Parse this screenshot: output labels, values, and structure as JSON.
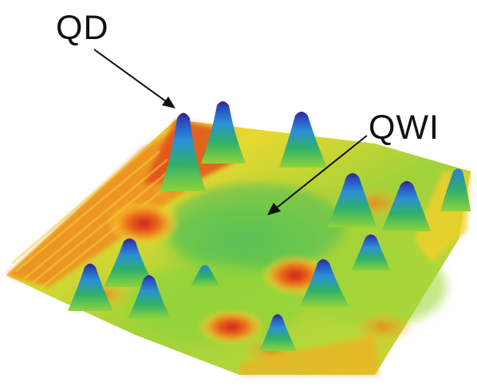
{
  "figure": {
    "description_kind": "3D surface plot of quantum dots and quantum well islands",
    "labels": {
      "qd": "QD",
      "qwi": "QWI"
    },
    "colormap": {
      "low": "#d62a1a",
      "low_mid": "#f07a1a",
      "mid_low": "#f2e02a",
      "mid": "#8fd43a",
      "mid_high": "#2fb06a",
      "high": "#2a6fd6",
      "peak": "#3b1f8c"
    }
  }
}
